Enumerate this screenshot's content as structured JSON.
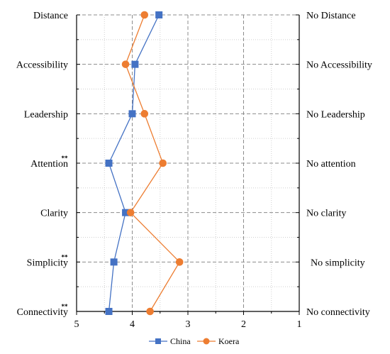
{
  "chart_data": {
    "type": "line",
    "orientation": "horizontal-profile",
    "x_axis": {
      "ticks": [
        "5",
        "4",
        "3",
        "2",
        "1"
      ],
      "range": [
        5,
        1
      ],
      "reversed": true
    },
    "left_labels": [
      "Distance",
      "Accessibility",
      "Leadership",
      "Attention",
      "Clarity",
      "Simplicity",
      "Connectivity"
    ],
    "right_labels": [
      "No Distance",
      "No Accessibility",
      "No Leadership",
      "No attention",
      "No clarity",
      "No simplicity",
      "No connectivity"
    ],
    "significance": [
      "",
      "",
      "",
      "**",
      "",
      "**",
      "**"
    ],
    "series": [
      {
        "name": "China",
        "color": "#4472C4",
        "marker": "square",
        "values": [
          3.52,
          3.95,
          4.0,
          4.42,
          4.12,
          4.33,
          4.42
        ]
      },
      {
        "name": "Koera",
        "color": "#ED7D31",
        "marker": "circle",
        "values": [
          3.78,
          4.12,
          3.78,
          3.45,
          4.03,
          3.15,
          3.68
        ]
      }
    ],
    "grid": true,
    "legend_position": "bottom-center"
  }
}
